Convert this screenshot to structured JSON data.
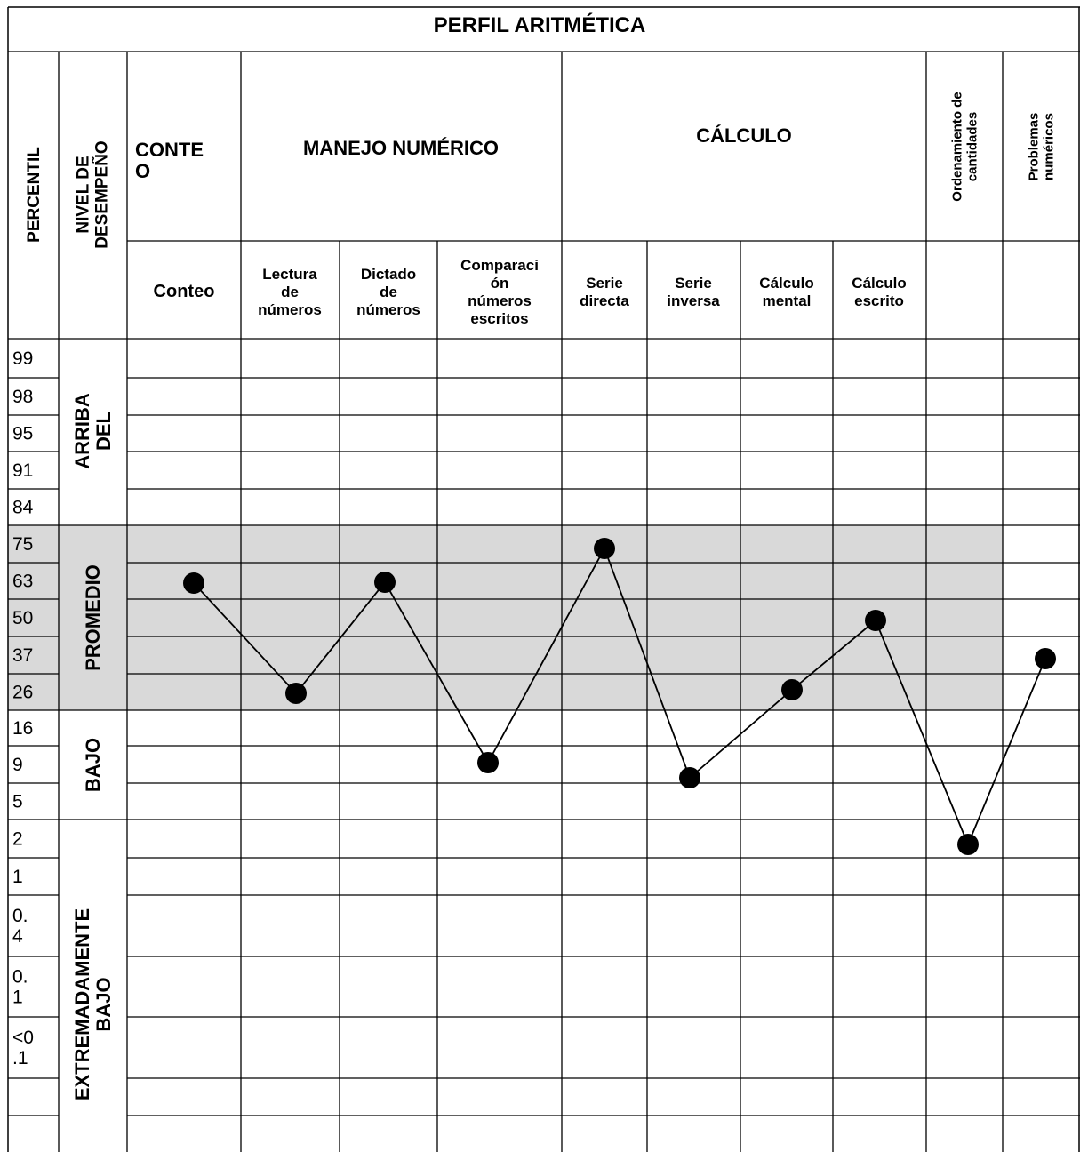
{
  "title": "PERFIL ARITMÉTICA",
  "header": {
    "percentil": "PERCENTIL",
    "nivel": [
      "NIVEL DE",
      "DESEMPEÑO"
    ],
    "groups": {
      "conteo": [
        "CONTE",
        "O"
      ],
      "manejo": "MANEJO NUMÉRICO",
      "calculo": "CÁLCULO",
      "ordenamiento": [
        "Ordenamiento de",
        "cantidades"
      ],
      "problemas": [
        "Problemas",
        "numéricos"
      ]
    },
    "subtests": [
      [
        "Conteo"
      ],
      [
        "Lectura",
        "de",
        "números"
      ],
      [
        "Dictado",
        "de",
        "números"
      ],
      [
        "Comparaci",
        "ón",
        "números",
        "escritos"
      ],
      [
        "Serie",
        "directa"
      ],
      [
        "Serie",
        "inversa"
      ],
      [
        "Cálculo",
        "mental"
      ],
      [
        "Cálculo",
        "escrito"
      ],
      [],
      []
    ]
  },
  "percentile_rows": [
    [
      "99"
    ],
    [
      "98"
    ],
    [
      "95"
    ],
    [
      "91"
    ],
    [
      "84"
    ],
    [
      "75"
    ],
    [
      "63"
    ],
    [
      "50"
    ],
    [
      "37"
    ],
    [
      "26"
    ],
    [
      "16"
    ],
    [
      "9"
    ],
    [
      "5"
    ],
    [
      "2"
    ],
    [
      "1"
    ],
    [
      "0.",
      "4"
    ],
    [
      "0.",
      "1"
    ],
    [
      "<0",
      ".1"
    ],
    [],
    []
  ],
  "levels": [
    {
      "lines": [
        "ARRIBA",
        "DEL"
      ],
      "start_row": 0,
      "end_row": 4
    },
    {
      "lines": [
        "PROMEDIO"
      ],
      "start_row": 5,
      "end_row": 9
    },
    {
      "lines": [
        "BAJO"
      ],
      "start_row": 10,
      "end_row": 12
    },
    {
      "lines": [
        "EXTREMADAMENTE",
        "BAJO"
      ],
      "start_row": 13,
      "end_row": 19
    }
  ],
  "colors": {
    "average_band": "#d9d9d9",
    "grid": "#000000",
    "marker": "#000000"
  },
  "chart_data": {
    "type": "line",
    "title": "PERFIL ARITMÉTICA",
    "categories": [
      "Conteo",
      "Lectura de números",
      "Dictado de números",
      "Comparación números escritos",
      "Serie directa",
      "Serie inversa",
      "Cálculo mental",
      "Cálculo escrito",
      "Ordenamiento de cantidades",
      "Problemas numéricos"
    ],
    "y_scale": [
      "99",
      "98",
      "95",
      "91",
      "84",
      "75",
      "63",
      "50",
      "37",
      "26",
      "16",
      "9",
      "5",
      "2",
      "1",
      "0.4",
      "0.1",
      "<0.1"
    ],
    "series": [
      {
        "values": [
          63,
          26,
          63,
          9,
          75,
          5,
          26,
          50,
          2,
          37
        ]
      }
    ],
    "shaded_band": [
      26,
      75
    ],
    "grid": true
  }
}
